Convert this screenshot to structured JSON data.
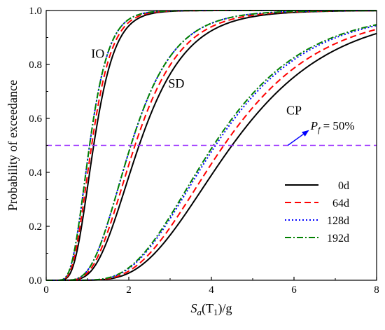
{
  "chart_data": {
    "type": "line",
    "xlabel": {
      "main": "S",
      "sub1": "a",
      "paren_open": "(T",
      "sub2": "1",
      "paren_close": ")/g"
    },
    "ylabel": "Probability  of  exceedance",
    "xlim": [
      0,
      8
    ],
    "ylim": [
      0,
      1.0
    ],
    "xticks": [
      "0",
      "2",
      "4",
      "6",
      "8"
    ],
    "yticks": [
      "0.0",
      "0.2",
      "0.4",
      "0.6",
      "0.8",
      "1.0"
    ],
    "grid": false,
    "legend_placement": "lower-right",
    "distribution": "lognormal CDF",
    "states": [
      "IO",
      "SD",
      "CP"
    ],
    "series": [
      {
        "name": "0d",
        "color": "#000000",
        "dash": "solid",
        "medians": {
          "IO": 1.15,
          "SD": 2.25,
          "CP": 4.5
        },
        "beta": {
          "IO": 0.35,
          "SD": 0.4,
          "CP": 0.42
        }
      },
      {
        "name": "64d",
        "color": "#ff0000",
        "dash": "dashed",
        "medians": {
          "IO": 1.1,
          "SD": 2.15,
          "CP": 4.3
        },
        "beta": {
          "IO": 0.35,
          "SD": 0.4,
          "CP": 0.42
        }
      },
      {
        "name": "128d",
        "color": "#0000ff",
        "dash": "dotted",
        "medians": {
          "IO": 1.05,
          "SD": 2.05,
          "CP": 4.1
        },
        "beta": {
          "IO": 0.35,
          "SD": 0.4,
          "CP": 0.42
        }
      },
      {
        "name": "192d",
        "color": "#008000",
        "dash": "dashdot",
        "medians": {
          "IO": 1.05,
          "SD": 2.05,
          "CP": 4.05
        },
        "beta": {
          "IO": 0.35,
          "SD": 0.4,
          "CP": 0.42
        }
      }
    ],
    "threshold": {
      "value": 0.5,
      "color": "#9b30ff",
      "label": {
        "P": "P",
        "sub": "f",
        "rest": " = 50%"
      }
    },
    "annotations": [
      {
        "text": "IO",
        "x": 1.25,
        "y": 0.84
      },
      {
        "text": "SD",
        "x": 3.15,
        "y": 0.73
      },
      {
        "text": "CP",
        "x": 6.0,
        "y": 0.63
      }
    ]
  }
}
